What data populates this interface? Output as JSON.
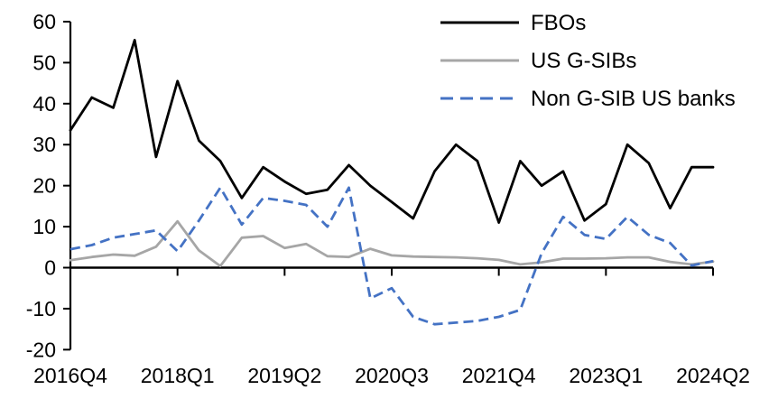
{
  "chart_data": {
    "type": "line",
    "title": "",
    "xlabel": "",
    "ylabel": "",
    "grid": false,
    "legend_position": "top-right",
    "ylim": [
      -20,
      60
    ],
    "y_ticks": [
      60,
      50,
      40,
      30,
      20,
      10,
      0,
      -10,
      -20
    ],
    "x": [
      "2016Q4",
      "2017Q1",
      "2017Q2",
      "2017Q3",
      "2017Q4",
      "2018Q1",
      "2018Q2",
      "2018Q3",
      "2018Q4",
      "2019Q1",
      "2019Q2",
      "2019Q3",
      "2019Q4",
      "2020Q1",
      "2020Q2",
      "2020Q3",
      "2020Q4",
      "2021Q1",
      "2021Q2",
      "2021Q3",
      "2021Q4",
      "2022Q1",
      "2022Q2",
      "2022Q3",
      "2022Q4",
      "2023Q1",
      "2023Q2",
      "2023Q3",
      "2023Q4",
      "2024Q1",
      "2024Q2"
    ],
    "x_tick_labels": [
      "2016Q4",
      "2018Q1",
      "2019Q2",
      "2020Q3",
      "2021Q4",
      "2023Q1",
      "2024Q2"
    ],
    "x_tick_indices": [
      0,
      5,
      10,
      15,
      20,
      25,
      30
    ],
    "axis_color": "#000000",
    "series": [
      {
        "name": "FBOs",
        "color": "#000000",
        "style": "solid",
        "values": [
          33.5,
          41.5,
          39,
          55.5,
          27,
          45.5,
          31,
          26,
          17,
          24.5,
          21,
          18,
          19,
          25,
          20,
          16,
          12,
          23.5,
          30,
          26,
          11,
          26,
          20,
          23.5,
          11.5,
          15.5,
          30,
          25.5,
          14.5,
          24.5,
          24.5
        ]
      },
      {
        "name": "US G-SIBs",
        "color": "#A6A6A6",
        "style": "solid",
        "values": [
          1.8,
          2.6,
          3.2,
          2.9,
          5.1,
          11.3,
          4.2,
          0.4,
          7.3,
          7.7,
          4.8,
          5.8,
          2.8,
          2.6,
          4.6,
          3.0,
          2.7,
          2.6,
          2.5,
          2.3,
          1.9,
          0.8,
          1.3,
          2.2,
          2.2,
          2.3,
          2.5,
          2.5,
          1.4,
          0.8,
          1.5
        ]
      },
      {
        "name": "Non G-SIB US banks",
        "color": "#4472C4",
        "style": "dashed",
        "values": [
          4.5,
          5.5,
          7.3,
          8.2,
          9.1,
          4.0,
          11.5,
          19.5,
          10.5,
          17,
          16.3,
          15.3,
          10,
          19.5,
          -7.5,
          -5,
          -12,
          -13.8,
          -13.4,
          -13,
          -12,
          -10.3,
          3.5,
          12.4,
          8,
          7,
          12.4,
          8,
          6,
          0.5,
          1.6
        ]
      }
    ]
  }
}
